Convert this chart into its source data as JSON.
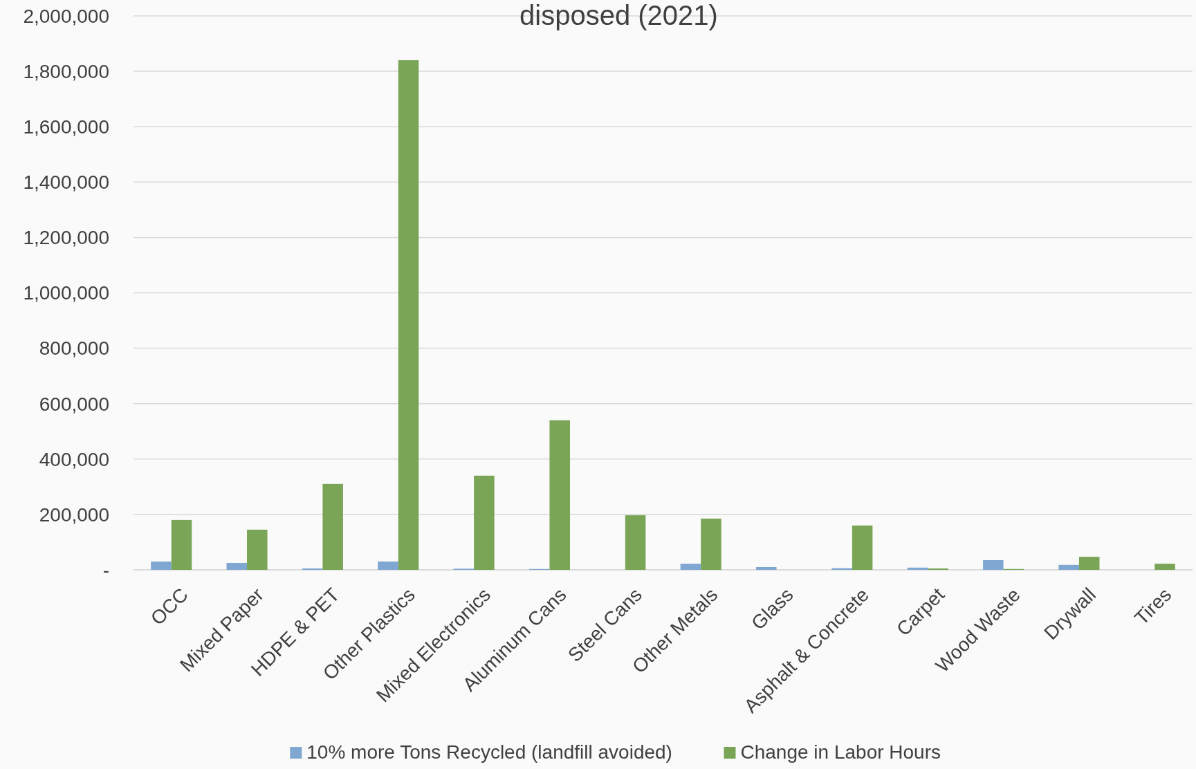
{
  "chart_data": {
    "type": "bar",
    "title": "disposed (2021)",
    "categories": [
      "OCC",
      "Mixed Paper",
      "HDPE & PET",
      "Other Plastics",
      "Mixed Electronics",
      "Aluminum Cans",
      "Steel Cans",
      "Other Metals",
      "Glass",
      "Asphalt & Concrete",
      "Carpet",
      "Wood Waste",
      "Drywall",
      "Tires"
    ],
    "series": [
      {
        "name": "10% more Tons Recycled (landfill avoided)",
        "color": "#7fa7d2",
        "values": [
          30000,
          25000,
          5000,
          30000,
          4000,
          3000,
          0,
          22000,
          10000,
          6000,
          8000,
          35000,
          18000,
          0
        ]
      },
      {
        "name": "Change in Labor Hours",
        "color": "#7aa557",
        "values": [
          180000,
          145000,
          310000,
          1840000,
          340000,
          540000,
          197000,
          185000,
          0,
          160000,
          5000,
          3000,
          47000,
          22000
        ]
      }
    ],
    "ylim": [
      0,
      2000000
    ],
    "yticks": [
      {
        "value": 0,
        "label": "-"
      },
      {
        "value": 200000,
        "label": "200,000"
      },
      {
        "value": 400000,
        "label": "400,000"
      },
      {
        "value": 600000,
        "label": "600,000"
      },
      {
        "value": 800000,
        "label": "800,000"
      },
      {
        "value": 1000000,
        "label": "1,000,000"
      },
      {
        "value": 1200000,
        "label": "1,200,000"
      },
      {
        "value": 1400000,
        "label": "1,400,000"
      },
      {
        "value": 1600000,
        "label": "1,600,000"
      },
      {
        "value": 1800000,
        "label": "1,800,000"
      },
      {
        "value": 2000000,
        "label": "2,000,000"
      }
    ],
    "grid": "y",
    "legend": "bottom"
  }
}
